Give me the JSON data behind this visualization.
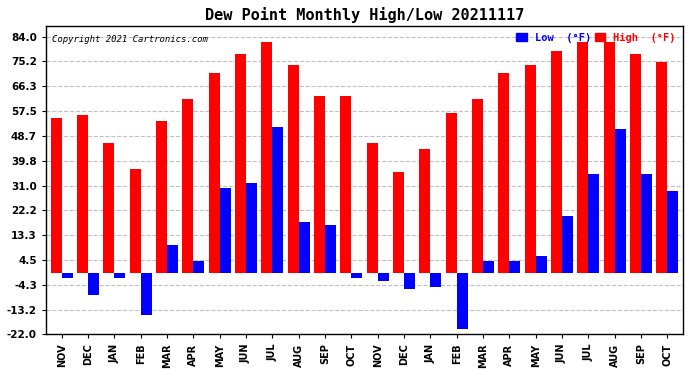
{
  "title": "Dew Point Monthly High/Low 20211117",
  "copyright": "Copyright 2021 Cartronics.com",
  "months": [
    "NOV",
    "DEC",
    "JAN",
    "FEB",
    "MAR",
    "APR",
    "MAY",
    "JUN",
    "JUL",
    "AUG",
    "SEP",
    "OCT",
    "NOV",
    "DEC",
    "JAN",
    "FEB",
    "MAR",
    "APR",
    "MAY",
    "JUN",
    "JUL",
    "AUG",
    "SEP",
    "OCT"
  ],
  "high_values": [
    55,
    56,
    46,
    37,
    54,
    62,
    71,
    78,
    82,
    74,
    63,
    63,
    46,
    36,
    44,
    57,
    62,
    71,
    74,
    79,
    82,
    82,
    78,
    75
  ],
  "low_values": [
    -2,
    -8,
    -2,
    -15,
    10,
    4,
    30,
    32,
    52,
    18,
    17,
    -2,
    -3,
    -6,
    -5,
    -20,
    4,
    4,
    6,
    20,
    35,
    51,
    35,
    29
  ],
  "yticks": [
    84.0,
    75.2,
    66.3,
    57.5,
    48.7,
    39.8,
    31.0,
    22.2,
    13.3,
    4.5,
    -4.3,
    -13.2,
    -22.0
  ],
  "high_color": "#FF0000",
  "low_color": "#0000FF",
  "background_color": "#FFFFFF",
  "grid_color": "#C0C0C0",
  "bar_width": 0.42,
  "ylim_min": -22.0,
  "ylim_max": 88.0
}
